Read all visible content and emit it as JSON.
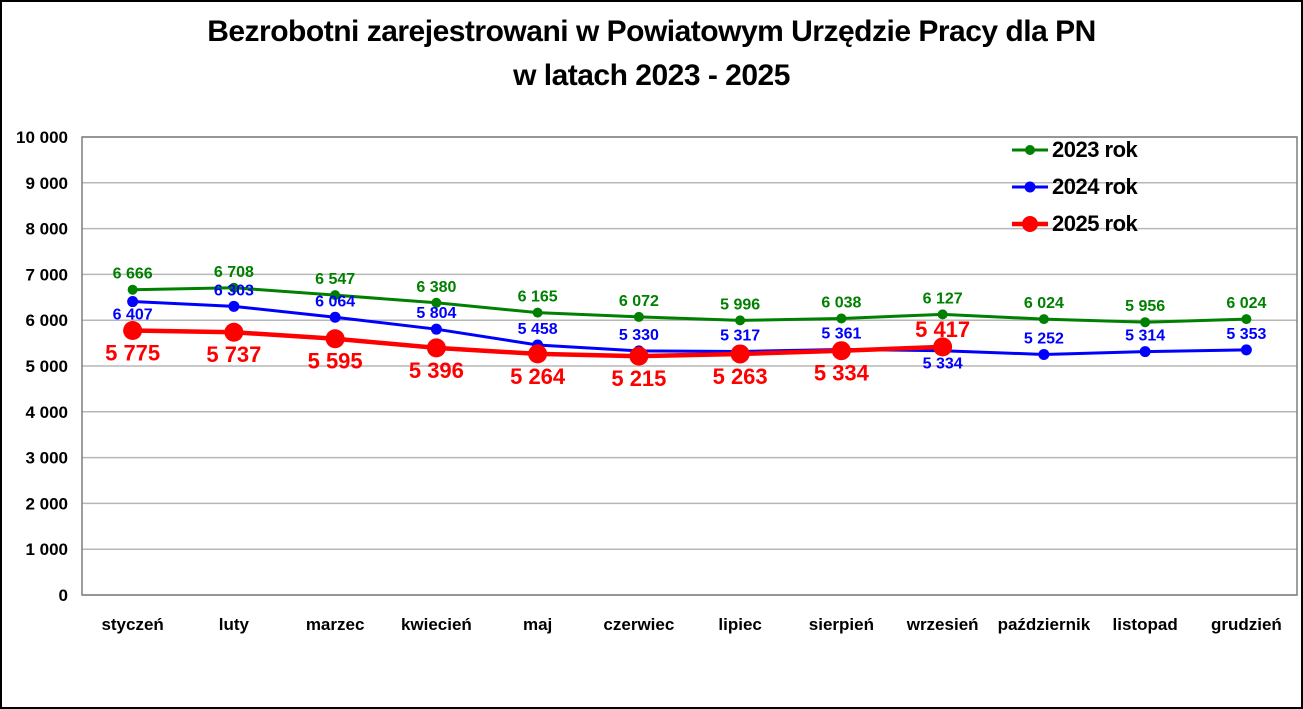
{
  "title": {
    "line1": "Bezrobotni zarejestrowani w Powiatowym Urzędzie Pracy dla PN",
    "line2": "w latach 2023 - 2025"
  },
  "colors": {
    "grid": "#b7b7b7",
    "plot_border": "#7f7f7f",
    "frame_border": "#000000",
    "background": "#ffffff",
    "series_2023": "#008000",
    "series_2024": "#0000ff",
    "series_2025": "#ff0000"
  },
  "y_axis": {
    "min": 0,
    "max": 10000,
    "step": 1000,
    "tick_labels": [
      "0",
      "1 000",
      "2 000",
      "3 000",
      "4 000",
      "5 000",
      "6 000",
      "7 000",
      "8 000",
      "9 000",
      "10 000"
    ]
  },
  "legend": {
    "items": [
      {
        "label": "2023 rok",
        "color": "#008000",
        "marker_radius": 5,
        "line_width": 3
      },
      {
        "label": "2024 rok",
        "color": "#0000ff",
        "marker_radius": 5.5,
        "line_width": 3
      },
      {
        "label": "2025 rok",
        "color": "#ff0000",
        "marker_radius": 8,
        "line_width": 4.5
      }
    ]
  },
  "chart_data": {
    "type": "line",
    "title": "Bezrobotni zarejestrowani w Powiatowym Urzędzie Pracy dla PN w latach 2023 - 2025",
    "xlabel": "",
    "ylabel": "",
    "ylim": [
      0,
      10000
    ],
    "ytick_step": 1000,
    "grid": true,
    "legend_position": "top-right",
    "categories": [
      "styczeń",
      "luty",
      "marzec",
      "kwiecień",
      "maj",
      "czerwiec",
      "lipiec",
      "sierpień",
      "wrzesień",
      "październik",
      "listopad",
      "grudzień"
    ],
    "series": [
      {
        "name": "2023 rok",
        "color": "#008000",
        "line_width": 3,
        "marker_radius": 5,
        "label_font_size": 16,
        "values": [
          6666,
          6708,
          6547,
          6380,
          6165,
          6072,
          5996,
          6038,
          6127,
          6024,
          5956,
          6024
        ],
        "labels": [
          "6 666",
          "6 708",
          "6 547",
          "6 380",
          "6 165",
          "6 072",
          "5 996",
          "6 038",
          "6 127",
          "6 024",
          "5 956",
          "6 024"
        ],
        "label_positions": [
          "above",
          "above",
          "above",
          "above",
          "above",
          "above",
          "above",
          "above",
          "above",
          "above",
          "above",
          "above"
        ]
      },
      {
        "name": "2024 rok",
        "color": "#0000ff",
        "line_width": 3,
        "marker_radius": 5.5,
        "label_font_size": 16,
        "values": [
          6407,
          6303,
          6064,
          5804,
          5458,
          5330,
          5317,
          5361,
          5334,
          5252,
          5314,
          5353
        ],
        "labels": [
          "6 407",
          "6 303",
          "6 064",
          "5 804",
          "5 458",
          "5 330",
          "5 317",
          "5 361",
          "5 334",
          "5 252",
          "5 314",
          "5 353"
        ],
        "label_positions": [
          "below",
          "above",
          "above",
          "above",
          "above",
          "above",
          "above",
          "above",
          "below",
          "above",
          "above",
          "above"
        ]
      },
      {
        "name": "2025 rok",
        "color": "#ff0000",
        "line_width": 4.5,
        "marker_radius": 9.5,
        "label_font_size": 22,
        "values": [
          5775,
          5737,
          5595,
          5396,
          5264,
          5215,
          5263,
          5334,
          5417
        ],
        "labels": [
          "5 775",
          "5 737",
          "5 595",
          "5 396",
          "5 264",
          "5 215",
          "5 263",
          "5 334",
          "5 417"
        ],
        "label_positions": [
          "below",
          "below",
          "below",
          "below",
          "below",
          "below",
          "below",
          "below",
          "above"
        ]
      }
    ]
  }
}
